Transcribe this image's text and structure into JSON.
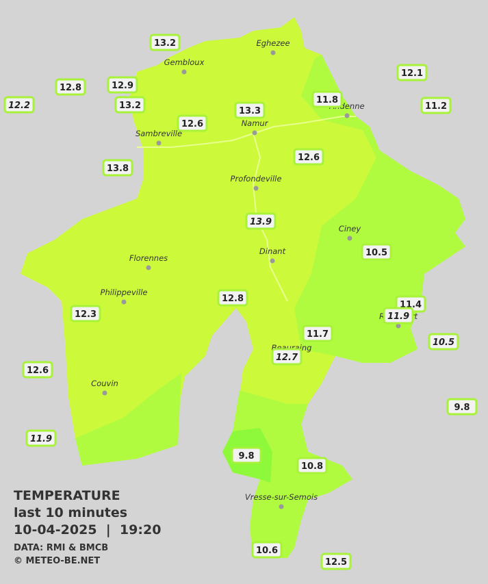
{
  "legend": {
    "title": "TEMPERATURE",
    "subtitle": "last 10 minutes",
    "datetime": "10-04-2025  |  19:20",
    "source": "DATA: RMI & BMCB",
    "copyright": "© METEO-BE.NET"
  },
  "cities": [
    "Eghezee",
    "Gembloux",
    "Andenne",
    "Namur",
    "Sambreville",
    "Profondeville",
    "Ciney",
    "Dinant",
    "Florennes",
    "Philippeville",
    "Rochefort",
    "Beauraing",
    "Couvin",
    "Vresse-sur-Semois"
  ],
  "stations": [
    {
      "value": "13.2"
    },
    {
      "value": "12.8"
    },
    {
      "value": "12.9"
    },
    {
      "value": "12.2",
      "italic": true
    },
    {
      "value": "13.2"
    },
    {
      "value": "12.6"
    },
    {
      "value": "13.3"
    },
    {
      "value": "11.8"
    },
    {
      "value": "12.1"
    },
    {
      "value": "11.2"
    },
    {
      "value": "13.8"
    },
    {
      "value": "12.6"
    },
    {
      "value": "13.9",
      "italic": true
    },
    {
      "value": "10.5"
    },
    {
      "value": "11.4"
    },
    {
      "value": "11.9",
      "italic": true
    },
    {
      "value": "12.8"
    },
    {
      "value": "12.3"
    },
    {
      "value": "11.7"
    },
    {
      "value": "12.7",
      "italic": true
    },
    {
      "value": "10.5",
      "italic": true
    },
    {
      "value": "12.6"
    },
    {
      "value": "9.8"
    },
    {
      "value": "11.9",
      "italic": true
    },
    {
      "value": "9.8"
    },
    {
      "value": "10.8"
    },
    {
      "value": "10.6"
    },
    {
      "value": "12.5"
    }
  ]
}
